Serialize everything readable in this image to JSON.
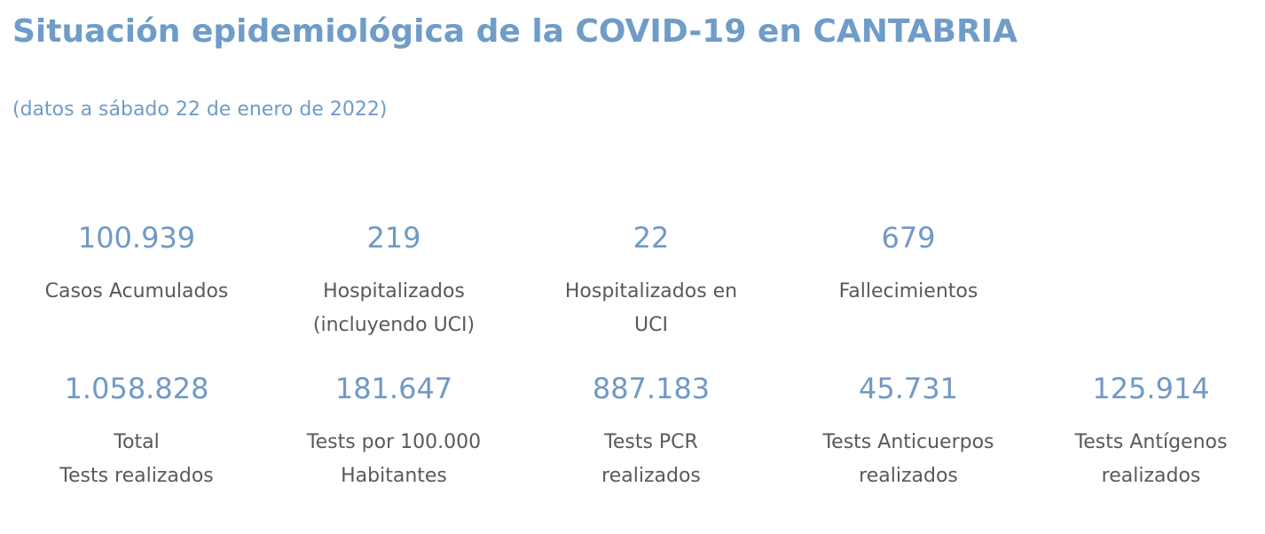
{
  "header": {
    "title": "Situación epidemiológica de la COVID-19 en CANTABRIA",
    "subtitle": "(datos a sábado 22 de enero de 2022)"
  },
  "colors": {
    "accent": "#6f9cc8",
    "label_text": "#595959"
  },
  "stats_row1": [
    {
      "value": "100.939",
      "label": "Casos Acumulados"
    },
    {
      "value": "219",
      "label": "Hospitalizados\n(incluyendo UCI)"
    },
    {
      "value": "22",
      "label": "Hospitalizados en\nUCI"
    },
    {
      "value": "679",
      "label": "Fallecimientos"
    }
  ],
  "stats_row2": [
    {
      "value": "1.058.828",
      "label": "Total\nTests realizados"
    },
    {
      "value": "181.647",
      "label": "Tests por 100.000\nHabitantes"
    },
    {
      "value": "887.183",
      "label": "Tests PCR\nrealizados"
    },
    {
      "value": "45.731",
      "label": "Tests Anticuerpos\nrealizados"
    },
    {
      "value": "125.914",
      "label": "Tests Antígenos\nrealizados"
    }
  ]
}
